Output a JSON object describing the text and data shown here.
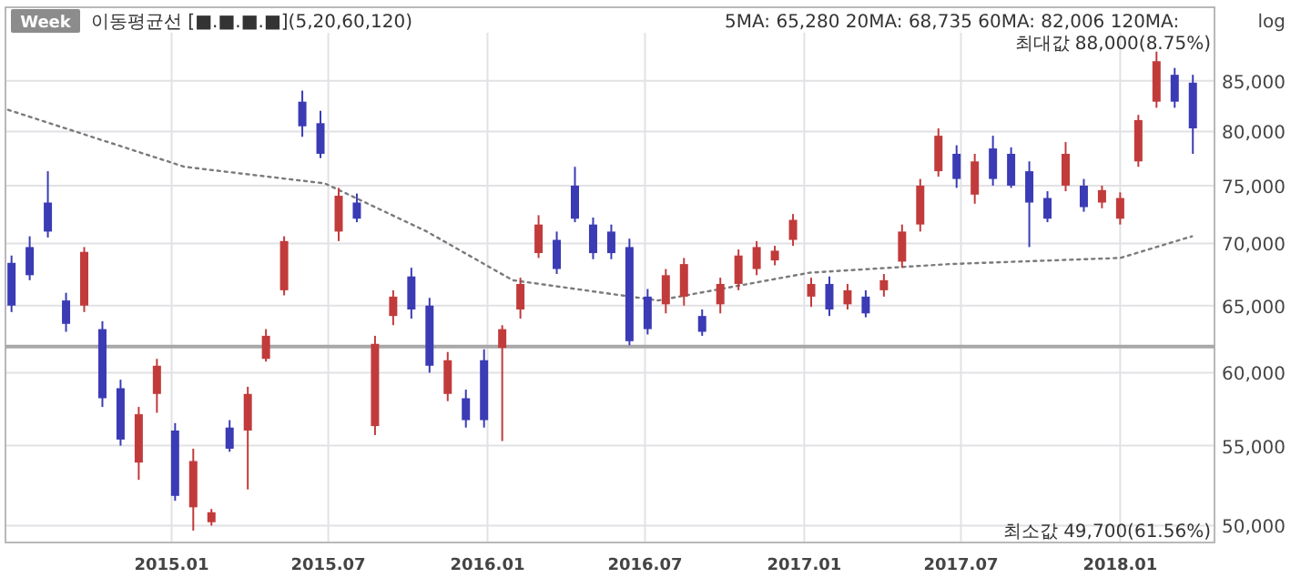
{
  "chart_data": {
    "type": "candlestick",
    "log": true,
    "grid": true,
    "annotations": [
      "Week",
      "이동평균선 [■.■.■.■](5,20,60,120)",
      "5MA: 65,280 20MA: 68,735 60MA: 82,006 120MA:",
      "최대값 88,000(8.75%)",
      "최소값 49,700(61.56%)",
      "log"
    ],
    "xlim": [
      "2014-06-23",
      "2018-04-20"
    ],
    "xticks": [
      {
        "value": "2015-01",
        "label": "2015.01"
      },
      {
        "value": "2015-07",
        "label": "2015.07"
      },
      {
        "value": "2016-01",
        "label": "2016.01"
      },
      {
        "value": "2016-07",
        "label": "2016.07"
      },
      {
        "value": "2017-01",
        "label": "2017.01"
      },
      {
        "value": "2017-07",
        "label": "2017.07"
      },
      {
        "value": "2018-01",
        "label": "2018.01"
      }
    ],
    "ylim": [
      49000,
      90000
    ],
    "yticks": [
      {
        "value": 50000,
        "label": "50,000"
      },
      {
        "value": 55000,
        "label": "55,000"
      },
      {
        "value": 60000,
        "label": "60,000"
      },
      {
        "value": 65000,
        "label": "65,000"
      },
      {
        "value": 70000,
        "label": "70,000"
      },
      {
        "value": 75000,
        "label": "75,000"
      },
      {
        "value": 80000,
        "label": "80,000"
      },
      {
        "value": 85000,
        "label": "85,000"
      }
    ],
    "ref_lines": [
      {
        "axis": "y",
        "value": 61900,
        "color": "#a8a8a8"
      }
    ],
    "x": [
      "2014-06-30",
      "2014-07-21",
      "2014-08-11",
      "2014-09-01",
      "2014-09-22",
      "2014-10-13",
      "2014-11-03",
      "2014-11-24",
      "2014-12-15",
      "2015-01-05",
      "2015-01-26",
      "2015-02-16",
      "2015-03-09",
      "2015-03-30",
      "2015-04-20",
      "2015-05-11",
      "2015-06-01",
      "2015-06-22",
      "2015-07-13",
      "2015-08-03",
      "2015-08-24",
      "2015-09-14",
      "2015-10-05",
      "2015-10-26",
      "2015-11-16",
      "2015-12-07",
      "2015-12-28",
      "2016-01-18",
      "2016-02-08",
      "2016-02-29",
      "2016-03-21",
      "2016-04-11",
      "2016-05-02",
      "2016-05-23",
      "2016-06-13",
      "2016-07-04",
      "2016-07-25",
      "2016-08-15",
      "2016-09-05",
      "2016-09-26",
      "2016-10-17",
      "2016-11-07",
      "2016-11-28",
      "2016-12-19",
      "2017-01-09",
      "2017-01-30",
      "2017-02-20",
      "2017-03-13",
      "2017-04-03",
      "2017-04-24",
      "2017-05-15",
      "2017-06-05",
      "2017-06-26",
      "2017-07-17",
      "2017-08-07",
      "2017-08-28",
      "2017-09-18",
      "2017-10-09",
      "2017-10-30",
      "2017-11-20",
      "2017-12-11",
      "2018-01-01",
      "2018-01-22",
      "2018-02-12",
      "2018-03-05",
      "2018-03-26"
    ],
    "ohlc": [
      [
        68400,
        69000,
        64500,
        65000
      ],
      [
        69700,
        70600,
        67000,
        67400
      ],
      [
        73500,
        76300,
        70500,
        71000
      ],
      [
        65400,
        66000,
        63000,
        63600
      ],
      [
        65000,
        69700,
        64500,
        69300
      ],
      [
        63200,
        63800,
        57600,
        58200
      ],
      [
        58900,
        59500,
        55000,
        55400
      ],
      [
        53900,
        57600,
        52800,
        57100
      ],
      [
        58500,
        61000,
        57200,
        60500
      ],
      [
        56000,
        56500,
        51500,
        51800
      ],
      [
        51100,
        54800,
        49700,
        54000
      ],
      [
        50200,
        51000,
        50000,
        50800
      ],
      [
        56200,
        56700,
        54600,
        54800
      ],
      [
        56000,
        59000,
        52200,
        58500
      ],
      [
        61000,
        63200,
        60800,
        62700
      ],
      [
        66200,
        70600,
        65800,
        70200
      ],
      [
        82900,
        84000,
        79500,
        80500
      ],
      [
        80800,
        82000,
        77500,
        77900
      ],
      [
        71000,
        74800,
        70200,
        74100
      ],
      [
        73500,
        74300,
        71800,
        72100
      ],
      [
        56300,
        62700,
        55700,
        62100
      ],
      [
        64200,
        66200,
        63500,
        65700
      ],
      [
        67300,
        68000,
        64000,
        64700
      ],
      [
        65000,
        65600,
        60000,
        60500
      ],
      [
        58500,
        61500,
        58000,
        60900
      ],
      [
        58200,
        58800,
        56200,
        56700
      ],
      [
        60900,
        61700,
        56200,
        56700
      ],
      [
        61800,
        63500,
        55300,
        63200
      ],
      [
        64700,
        67200,
        64000,
        66700
      ],
      [
        69200,
        72400,
        68800,
        71600
      ],
      [
        70300,
        71000,
        67500,
        67900
      ],
      [
        75000,
        76700,
        71800,
        72100
      ],
      [
        71600,
        72200,
        68700,
        69200
      ],
      [
        71000,
        71600,
        68700,
        69200
      ],
      [
        69700,
        70400,
        62000,
        62300
      ],
      [
        65700,
        66300,
        62800,
        63200
      ],
      [
        65100,
        67900,
        64400,
        67400
      ],
      [
        65700,
        68800,
        65000,
        68300
      ],
      [
        64200,
        64700,
        62700,
        63000
      ],
      [
        65100,
        67200,
        64400,
        66700
      ],
      [
        66700,
        69500,
        66200,
        69000
      ],
      [
        67900,
        70200,
        67400,
        69700
      ],
      [
        68600,
        69800,
        68200,
        69400
      ],
      [
        70300,
        72500,
        69800,
        72000
      ],
      [
        65700,
        67200,
        64900,
        66700
      ],
      [
        66700,
        67300,
        64200,
        64700
      ],
      [
        65100,
        66700,
        64700,
        66200
      ],
      [
        65700,
        66200,
        64100,
        64400
      ],
      [
        66200,
        67500,
        65700,
        67000
      ],
      [
        68500,
        71600,
        68000,
        71000
      ],
      [
        71600,
        75600,
        71000,
        75000
      ],
      [
        76300,
        80300,
        75800,
        79600
      ],
      [
        77900,
        78700,
        74800,
        75600
      ],
      [
        74200,
        77900,
        73400,
        77200
      ],
      [
        78400,
        79600,
        75000,
        75600
      ],
      [
        77900,
        78500,
        74800,
        75000
      ],
      [
        76300,
        77200,
        69700,
        73500
      ],
      [
        73900,
        74500,
        71800,
        72100
      ],
      [
        75000,
        79000,
        74500,
        77900
      ],
      [
        75000,
        75600,
        72700,
        73100
      ],
      [
        73500,
        75000,
        73000,
        74600
      ],
      [
        72100,
        74400,
        71600,
        73900
      ],
      [
        77200,
        81600,
        76700,
        81100
      ],
      [
        82900,
        88000,
        82300,
        87000
      ],
      [
        85600,
        86300,
        82300,
        82900
      ],
      [
        84800,
        85600,
        77900,
        80300
      ]
    ],
    "colors": [
      "#3b3bb5",
      "#3b3bb5",
      "#3b3bb5",
      "#3b3bb5",
      "#c23b3b",
      "#3b3bb5",
      "#3b3bb5",
      "#c23b3b",
      "#c23b3b",
      "#3b3bb5",
      "#c23b3b",
      "#c23b3b",
      "#3b3bb5",
      "#c23b3b",
      "#c23b3b",
      "#c23b3b",
      "#3b3bb5",
      "#3b3bb5",
      "#c23b3b",
      "#3b3bb5",
      "#c23b3b",
      "#c23b3b",
      "#3b3bb5",
      "#3b3bb5",
      "#c23b3b",
      "#3b3bb5",
      "#3b3bb5",
      "#c23b3b",
      "#c23b3b",
      "#c23b3b",
      "#3b3bb5",
      "#3b3bb5",
      "#3b3bb5",
      "#3b3bb5",
      "#3b3bb5",
      "#3b3bb5",
      "#c23b3b",
      "#c23b3b",
      "#3b3bb5",
      "#c23b3b",
      "#c23b3b",
      "#c23b3b",
      "#c23b3b",
      "#c23b3b",
      "#c23b3b",
      "#3b3bb5",
      "#c23b3b",
      "#3b3bb5",
      "#c23b3b",
      "#c23b3b",
      "#c23b3b",
      "#c23b3b",
      "#3b3bb5",
      "#c23b3b",
      "#3b3bb5",
      "#3b3bb5",
      "#3b3bb5",
      "#3b3bb5",
      "#c23b3b",
      "#3b3bb5",
      "#c23b3b",
      "#c23b3b",
      "#c23b3b",
      "#c23b3b",
      "#3b3bb5",
      "#3b3bb5"
    ],
    "series": [
      {
        "type": "line",
        "color": "#7a7a7a",
        "line_style": "dotted",
        "x": [
          "2014-06-26",
          "2015-01-16",
          "2015-06-27",
          "2015-10-23",
          "2016-01-30",
          "2016-07-16",
          "2017-01-07",
          "2017-06-18",
          "2018-01-01",
          "2018-03-25"
        ],
        "values": [
          82100,
          76700,
          75200,
          71000,
          67000,
          65400,
          67600,
          68300,
          68800,
          70600
        ]
      }
    ]
  }
}
